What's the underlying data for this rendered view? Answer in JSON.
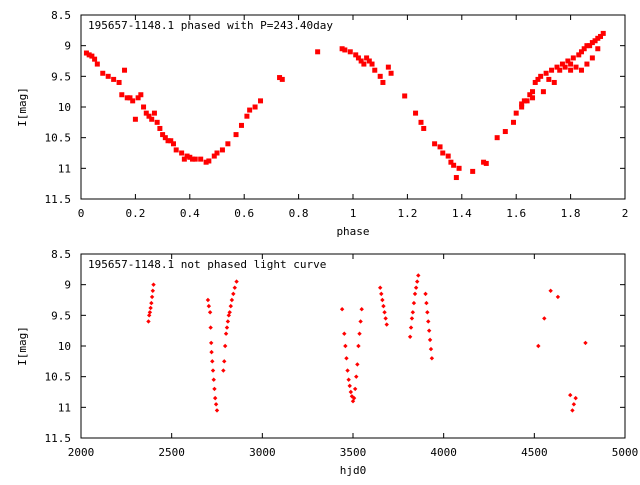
{
  "chart_data": [
    {
      "type": "scatter",
      "title": "195657-1148.1 phased with P=243.40day",
      "xlabel": "phase",
      "ylabel": "I[mag]",
      "xlim": [
        0,
        2
      ],
      "ylim": [
        11.5,
        8.5
      ],
      "y_inverted": true,
      "grid": false,
      "marker": "square",
      "color": "#ff0000",
      "xticks": [
        "0",
        "0.2",
        "0.4",
        "0.6",
        "0.8",
        "1",
        "1.2",
        "1.4",
        "1.6",
        "1.8",
        "2"
      ],
      "yticks": [
        "8.5",
        "9",
        "9.5",
        "10",
        "10.5",
        "11",
        "11.5"
      ],
      "points": [
        [
          0.02,
          9.12
        ],
        [
          0.03,
          9.15
        ],
        [
          0.04,
          9.17
        ],
        [
          0.05,
          9.22
        ],
        [
          0.06,
          9.3
        ],
        [
          0.08,
          9.45
        ],
        [
          0.1,
          9.5
        ],
        [
          0.12,
          9.55
        ],
        [
          0.14,
          9.6
        ],
        [
          0.15,
          9.8
        ],
        [
          0.16,
          9.4
        ],
        [
          0.17,
          9.85
        ],
        [
          0.18,
          9.85
        ],
        [
          0.19,
          9.9
        ],
        [
          0.2,
          10.2
        ],
        [
          0.21,
          9.85
        ],
        [
          0.22,
          9.8
        ],
        [
          0.23,
          10.0
        ],
        [
          0.24,
          10.1
        ],
        [
          0.25,
          10.15
        ],
        [
          0.26,
          10.2
        ],
        [
          0.27,
          10.1
        ],
        [
          0.28,
          10.25
        ],
        [
          0.29,
          10.35
        ],
        [
          0.3,
          10.45
        ],
        [
          0.31,
          10.5
        ],
        [
          0.32,
          10.55
        ],
        [
          0.33,
          10.55
        ],
        [
          0.34,
          10.6
        ],
        [
          0.35,
          10.7
        ],
        [
          0.37,
          10.75
        ],
        [
          0.38,
          10.85
        ],
        [
          0.39,
          10.8
        ],
        [
          0.4,
          10.82
        ],
        [
          0.41,
          10.85
        ],
        [
          0.42,
          10.85
        ],
        [
          0.44,
          10.85
        ],
        [
          0.46,
          10.9
        ],
        [
          0.47,
          10.88
        ],
        [
          0.49,
          10.8
        ],
        [
          0.5,
          10.75
        ],
        [
          0.52,
          10.7
        ],
        [
          0.54,
          10.6
        ],
        [
          0.57,
          10.45
        ],
        [
          0.59,
          10.3
        ],
        [
          0.61,
          10.15
        ],
        [
          0.62,
          10.05
        ],
        [
          0.64,
          10.0
        ],
        [
          0.66,
          9.9
        ],
        [
          0.73,
          9.52
        ],
        [
          0.74,
          9.55
        ],
        [
          0.87,
          9.1
        ],
        [
          0.96,
          9.05
        ],
        [
          0.97,
          9.07
        ],
        [
          0.99,
          9.1
        ],
        [
          1.01,
          9.15
        ],
        [
          1.02,
          9.2
        ],
        [
          1.03,
          9.25
        ],
        [
          1.04,
          9.3
        ],
        [
          1.05,
          9.2
        ],
        [
          1.06,
          9.25
        ],
        [
          1.07,
          9.3
        ],
        [
          1.08,
          9.4
        ],
        [
          1.1,
          9.5
        ],
        [
          1.11,
          9.6
        ],
        [
          1.13,
          9.35
        ],
        [
          1.14,
          9.45
        ],
        [
          1.19,
          9.82
        ],
        [
          1.23,
          10.1
        ],
        [
          1.25,
          10.25
        ],
        [
          1.26,
          10.35
        ],
        [
          1.3,
          10.6
        ],
        [
          1.32,
          10.65
        ],
        [
          1.33,
          10.75
        ],
        [
          1.35,
          10.8
        ],
        [
          1.36,
          10.9
        ],
        [
          1.37,
          10.95
        ],
        [
          1.38,
          11.15
        ],
        [
          1.39,
          11.0
        ],
        [
          1.44,
          11.05
        ],
        [
          1.48,
          10.9
        ],
        [
          1.49,
          10.92
        ],
        [
          1.53,
          10.5
        ],
        [
          1.56,
          10.4
        ],
        [
          1.59,
          10.25
        ],
        [
          1.6,
          10.1
        ],
        [
          1.62,
          10.0
        ],
        [
          1.63,
          9.9
        ],
        [
          1.65,
          9.8
        ],
        [
          1.66,
          9.75
        ],
        [
          1.67,
          9.6
        ],
        [
          1.69,
          9.5
        ],
        [
          1.71,
          9.45
        ],
        [
          1.73,
          9.4
        ],
        [
          1.75,
          9.35
        ],
        [
          1.77,
          9.3
        ],
        [
          1.79,
          9.25
        ],
        [
          1.8,
          9.3
        ],
        [
          1.81,
          9.2
        ],
        [
          1.83,
          9.15
        ],
        [
          1.84,
          9.1
        ],
        [
          1.85,
          9.05
        ],
        [
          1.86,
          9.0
        ],
        [
          1.87,
          9.0
        ],
        [
          1.88,
          8.95
        ],
        [
          1.89,
          8.92
        ],
        [
          1.9,
          8.88
        ],
        [
          1.91,
          8.85
        ],
        [
          1.92,
          8.8
        ],
        [
          1.82,
          9.35
        ],
        [
          1.84,
          9.4
        ],
        [
          1.86,
          9.3
        ],
        [
          1.88,
          9.2
        ],
        [
          1.9,
          9.05
        ],
        [
          1.8,
          9.4
        ],
        [
          1.78,
          9.35
        ],
        [
          1.76,
          9.4
        ],
        [
          1.7,
          9.75
        ],
        [
          1.72,
          9.55
        ],
        [
          1.74,
          9.6
        ],
        [
          1.68,
          9.55
        ],
        [
          1.66,
          9.85
        ],
        [
          1.64,
          9.9
        ],
        [
          1.62,
          9.95
        ]
      ]
    },
    {
      "type": "scatter",
      "title": "195657-1148.1 not phased light curve",
      "xlabel": "hjd0",
      "ylabel": "I[mag]",
      "xlim": [
        2000,
        5000
      ],
      "ylim": [
        11.5,
        8.5
      ],
      "y_inverted": true,
      "grid": false,
      "marker": "diamond",
      "color": "#ff0000",
      "xticks": [
        "2000",
        "2500",
        "3000",
        "3500",
        "4000",
        "4500",
        "5000"
      ],
      "yticks": [
        "8.5",
        "9",
        "9.5",
        "10",
        "10.5",
        "11",
        "11.5"
      ],
      "points": [
        [
          2372,
          9.6
        ],
        [
          2376,
          9.5
        ],
        [
          2380,
          9.45
        ],
        [
          2384,
          9.38
        ],
        [
          2388,
          9.3
        ],
        [
          2392,
          9.2
        ],
        [
          2396,
          9.1
        ],
        [
          2400,
          9.0
        ],
        [
          2700,
          9.25
        ],
        [
          2705,
          9.35
        ],
        [
          2712,
          9.45
        ],
        [
          2715,
          9.7
        ],
        [
          2718,
          9.95
        ],
        [
          2720,
          10.1
        ],
        [
          2724,
          10.25
        ],
        [
          2728,
          10.4
        ],
        [
          2732,
          10.55
        ],
        [
          2736,
          10.7
        ],
        [
          2740,
          10.85
        ],
        [
          2745,
          10.95
        ],
        [
          2750,
          11.05
        ],
        [
          2785,
          10.4
        ],
        [
          2790,
          10.25
        ],
        [
          2795,
          10.0
        ],
        [
          2800,
          9.8
        ],
        [
          2805,
          9.7
        ],
        [
          2810,
          9.6
        ],
        [
          2815,
          9.5
        ],
        [
          2820,
          9.45
        ],
        [
          2826,
          9.35
        ],
        [
          2832,
          9.25
        ],
        [
          2840,
          9.15
        ],
        [
          2848,
          9.05
        ],
        [
          2858,
          8.95
        ],
        [
          3440,
          9.4
        ],
        [
          3452,
          9.8
        ],
        [
          3458,
          10.0
        ],
        [
          3464,
          10.2
        ],
        [
          3470,
          10.4
        ],
        [
          3476,
          10.55
        ],
        [
          3482,
          10.65
        ],
        [
          3488,
          10.75
        ],
        [
          3494,
          10.82
        ],
        [
          3500,
          10.9
        ],
        [
          3506,
          10.85
        ],
        [
          3512,
          10.7
        ],
        [
          3518,
          10.5
        ],
        [
          3524,
          10.3
        ],
        [
          3530,
          10.0
        ],
        [
          3536,
          9.8
        ],
        [
          3542,
          9.6
        ],
        [
          3548,
          9.4
        ],
        [
          3650,
          9.05
        ],
        [
          3656,
          9.15
        ],
        [
          3662,
          9.25
        ],
        [
          3668,
          9.35
        ],
        [
          3674,
          9.45
        ],
        [
          3680,
          9.55
        ],
        [
          3686,
          9.65
        ],
        [
          3815,
          9.85
        ],
        [
          3820,
          9.7
        ],
        [
          3825,
          9.55
        ],
        [
          3830,
          9.45
        ],
        [
          3836,
          9.3
        ],
        [
          3842,
          9.15
        ],
        [
          3848,
          9.05
        ],
        [
          3854,
          8.95
        ],
        [
          3860,
          8.85
        ],
        [
          3900,
          9.15
        ],
        [
          3905,
          9.3
        ],
        [
          3910,
          9.45
        ],
        [
          3915,
          9.6
        ],
        [
          3920,
          9.75
        ],
        [
          3925,
          9.9
        ],
        [
          3930,
          10.05
        ],
        [
          3935,
          10.2
        ],
        [
          4522,
          10.0
        ],
        [
          4555,
          9.55
        ],
        [
          4590,
          9.1
        ],
        [
          4630,
          9.2
        ],
        [
          4698,
          10.8
        ],
        [
          4710,
          11.05
        ],
        [
          4718,
          10.95
        ],
        [
          4728,
          10.85
        ],
        [
          4782,
          9.95
        ]
      ]
    }
  ]
}
